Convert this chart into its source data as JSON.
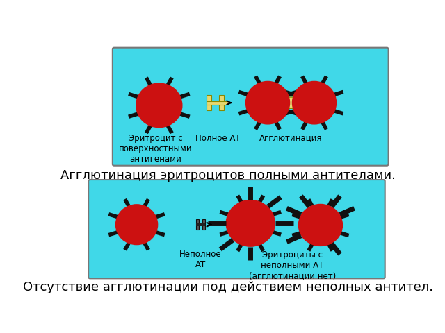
{
  "bg_color": "#ffffff",
  "panel1_color": "#40d8e8",
  "panel2_color": "#40d8e8",
  "erythrocyte_color": "#cc1111",
  "spike_color": "#111111",
  "antibody_full_color": "#e8d870",
  "text1": "Агглютинация эритроцитов полными антителами.",
  "text2": "Отсутствие агглютинации под действием неполных антител.",
  "label_erythrocyte": "Эритроцит с\nповерхностными\nантигенами",
  "label_full_at": "Полное АТ",
  "label_agglutination": "Агглютинация",
  "label_incomplete_at": "Неполное\nАТ",
  "label_erythrocytes_incomplete": "Эритроциты с\nнеполными АТ\n(агглютинации нет)",
  "font_size_main": 13,
  "font_size_label": 8.5
}
